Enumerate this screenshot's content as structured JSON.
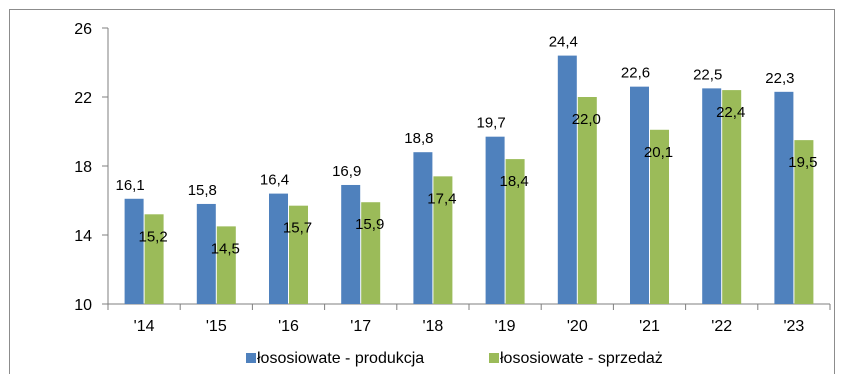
{
  "chart_data": {
    "type": "bar",
    "categories": [
      "'14",
      "'15",
      "'16",
      "'17",
      "'18",
      "'19",
      "'20",
      "'21",
      "'22",
      "'23"
    ],
    "series": [
      {
        "name": "łososiowate - produkcja",
        "color": "#4f81bd",
        "values": [
          16.1,
          15.8,
          16.4,
          16.9,
          18.8,
          19.7,
          24.4,
          22.6,
          22.5,
          22.3
        ],
        "labels": [
          "16,1",
          "15,8",
          "16,4",
          "16,9",
          "18,8",
          "19,7",
          "24,4",
          "22,6",
          "22,5",
          "22,3"
        ]
      },
      {
        "name": "łososiowate - sprzedaż",
        "color": "#9bbb59",
        "values": [
          15.2,
          14.5,
          15.7,
          15.9,
          17.4,
          18.4,
          22.0,
          20.1,
          22.4,
          19.5
        ],
        "labels": [
          "15,2",
          "14,5",
          "15,7",
          "15,9",
          "17,4",
          "18,4",
          "22,0",
          "20,1",
          "22,4",
          "19,5"
        ]
      }
    ],
    "y_ticks": [
      "10",
      "14",
      "18",
      "22",
      "26"
    ],
    "ylim": [
      10,
      26
    ],
    "grid": false,
    "legend": "bottom",
    "title": "",
    "xlabel": "",
    "ylabel": ""
  }
}
